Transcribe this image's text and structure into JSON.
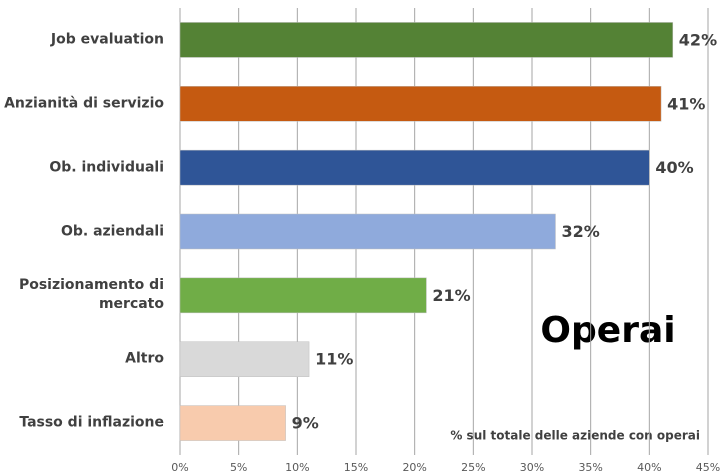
{
  "chart_data": {
    "type": "hbar",
    "categories": [
      "Job evaluation",
      "Anzianità di servizio",
      "Ob. individuali",
      "Ob. aziendali",
      "Posizionamento di mercato",
      "Altro",
      "Tasso di inflazione"
    ],
    "values": [
      42,
      41,
      40,
      32,
      21,
      11,
      9
    ],
    "value_labels": [
      "42%",
      "41%",
      "40%",
      "32%",
      "21%",
      "11%",
      "9%"
    ],
    "colors": [
      "#548235",
      "#c55a11",
      "#2f5597",
      "#8faadc",
      "#70ad47",
      "#d9d9d9",
      "#f8cbad"
    ],
    "xlim": [
      0,
      45
    ],
    "xticks": [
      {
        "value": 0,
        "label": "0%"
      },
      {
        "value": 5,
        "label": "5%"
      },
      {
        "value": 10,
        "label": "10%"
      },
      {
        "value": 15,
        "label": "15%"
      },
      {
        "value": 20,
        "label": "20%"
      },
      {
        "value": 25,
        "label": "25%"
      },
      {
        "value": 30,
        "label": "30%"
      },
      {
        "value": 35,
        "label": "35%"
      },
      {
        "value": 40,
        "label": "40%"
      },
      {
        "value": 45,
        "label": "45%"
      }
    ],
    "grid": true,
    "annotations": [
      "Operai",
      "% sul totale delle aziende con operai"
    ]
  }
}
